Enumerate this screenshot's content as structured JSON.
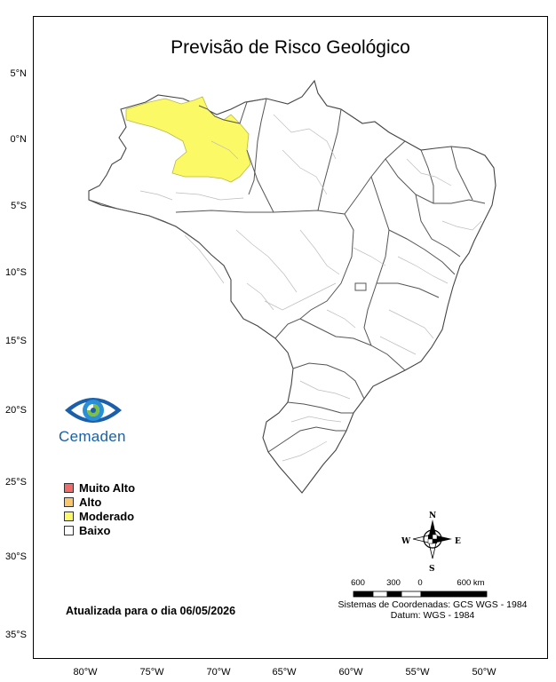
{
  "title": "Previsão de Risco Geológico",
  "latitude_labels": [
    "5°N",
    "0°N",
    "5°S",
    "10°S",
    "15°S",
    "20°S",
    "25°S",
    "30°S",
    "35°S"
  ],
  "longitude_labels": [
    "80°W",
    "75°W",
    "70°W",
    "65°W",
    "60°W",
    "55°W",
    "50°W"
  ],
  "legend": {
    "items": [
      {
        "label": "Muito Alto",
        "color": "#f26b6b"
      },
      {
        "label": "Alto",
        "color": "#f9c66b"
      },
      {
        "label": "Moderado",
        "color": "#fcf967"
      },
      {
        "label": "Baixo",
        "color": "#ffffff"
      }
    ]
  },
  "logo": {
    "text": "Cemaden",
    "icon": "cemaden-eye-icon"
  },
  "updated_text": "Atualizada para o dia 06/05/2026",
  "compass": {
    "north": "N",
    "south": "S",
    "east": "E",
    "west": "W"
  },
  "scale_bar": {
    "labels": [
      "600",
      "300",
      "0",
      "600 km"
    ]
  },
  "coordinate_system": "Sistemas de Coordenadas: GCS WGS - 1984",
  "datum": "Datum: WGS - 1984",
  "colors": {
    "moderate_region": "#fcf967",
    "state_border": "#555555",
    "municipal_border": "#bdbdbd"
  }
}
